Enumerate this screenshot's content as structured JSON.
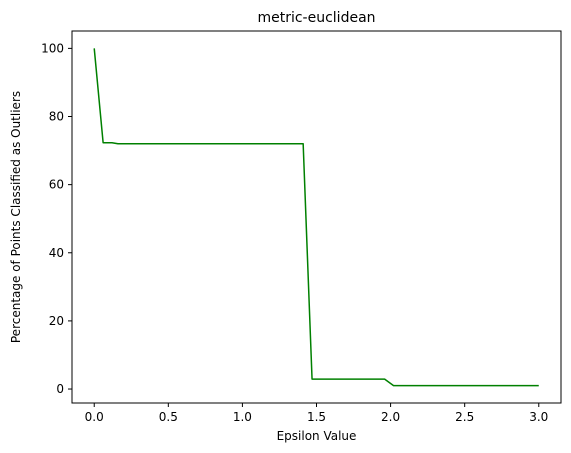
{
  "chart_data": {
    "type": "line",
    "title": "metric-euclidean",
    "xlabel": "Epsilon Value",
    "ylabel": "Percentage of Points Classified as Outliers",
    "xlim": [
      -0.15,
      3.15
    ],
    "ylim": [
      -4.1,
      105.1
    ],
    "x_ticks": [
      0.0,
      0.5,
      1.0,
      1.5,
      2.0,
      2.5,
      3.0
    ],
    "x_tick_labels": [
      "0.0",
      "0.5",
      "1.0",
      "1.5",
      "2.0",
      "2.5",
      "3.0"
    ],
    "y_ticks": [
      0,
      20,
      40,
      60,
      80,
      100
    ],
    "y_tick_labels": [
      "0",
      "20",
      "40",
      "60",
      "80",
      "100"
    ],
    "grid": false,
    "legend": "none",
    "series": [
      {
        "color": "#008000",
        "x": [
          0.0,
          0.06,
          0.12,
          0.16,
          0.2,
          0.3,
          0.5,
          0.8,
          1.0,
          1.2,
          1.35,
          1.41,
          1.47,
          1.6,
          1.8,
          1.96,
          2.02,
          2.2,
          2.5,
          2.8,
          3.0
        ],
        "y": [
          100,
          72.3,
          72.3,
          72.0,
          72.0,
          72.0,
          72.0,
          72.0,
          72.0,
          72.0,
          72.0,
          72.0,
          2.9,
          2.9,
          2.9,
          2.9,
          1.0,
          1.0,
          1.0,
          1.0,
          1.0
        ]
      }
    ]
  }
}
